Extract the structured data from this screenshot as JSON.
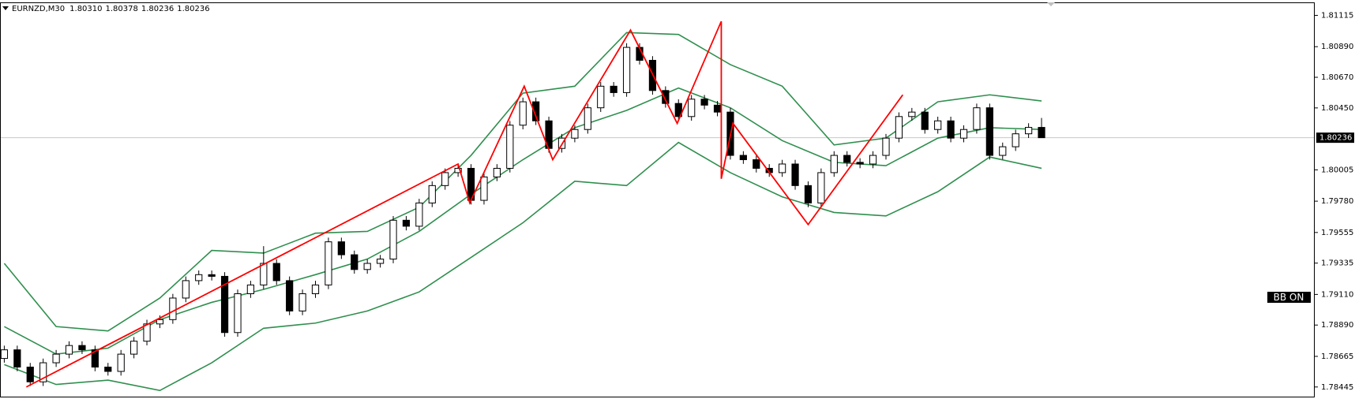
{
  "chart_data": {
    "type": "candlestick",
    "title": "EURNZD,M30",
    "quote_labels": [
      "1.80310",
      "1.80378",
      "1.80236",
      "1.80236"
    ],
    "indicator_label": "BB ON",
    "current_price": 1.80236,
    "xlim": [
      -0.33,
      101.07
    ],
    "ylim": [
      1.7837,
      1.81214
    ],
    "yticks": [
      1.81115,
      {
        "value": 1.8089,
        "label": "1.80890"
      },
      {
        "value": 1.8067,
        "label": "1.80670"
      },
      {
        "value": 1.8045,
        "label": "1.80450"
      },
      1.80005,
      {
        "value": 1.7978,
        "label": "1.79780"
      },
      1.79555,
      1.79335,
      {
        "value": 1.7911,
        "label": "1.79110"
      },
      {
        "value": 1.7889,
        "label": "1.78890"
      },
      1.78665,
      1.78445
    ],
    "up_color": "#ffffff",
    "down_color": "#000000",
    "x": [
      0,
      1,
      2,
      3,
      4,
      5,
      6,
      7,
      8,
      9,
      10,
      11,
      12,
      13,
      14,
      15,
      16,
      17,
      18,
      19,
      20,
      21,
      22,
      23,
      24,
      25,
      26,
      27,
      28,
      29,
      30,
      31,
      32,
      33,
      34,
      35,
      36,
      37,
      38,
      39,
      40,
      41,
      42,
      43,
      44,
      45,
      46,
      47,
      48,
      49,
      50,
      51,
      52,
      53,
      54,
      55,
      56,
      57,
      58,
      59,
      60,
      61,
      62,
      63,
      64,
      65,
      66,
      67,
      68,
      69,
      70,
      71,
      72,
      73,
      74,
      75,
      76,
      77,
      78,
      79,
      80
    ],
    "open": [
      1.7865,
      1.78712,
      1.78588,
      1.78482,
      1.78619,
      1.78681,
      1.78743,
      1.78712,
      1.78588,
      1.78557,
      1.78681,
      1.78774,
      1.78898,
      1.78929,
      1.79084,
      1.79209,
      1.79252,
      1.7924,
      1.78836,
      1.79115,
      1.79178,
      1.79333,
      1.79209,
      1.78991,
      1.79115,
      1.79178,
      1.79488,
      1.79395,
      1.79289,
      1.79333,
      1.79364,
      1.79643,
      1.796,
      1.79767,
      1.79892,
      1.79985,
      1.80016,
      1.79786,
      1.79954,
      1.80016,
      1.80326,
      1.80494,
      1.80357,
      1.80159,
      1.80233,
      1.80295,
      1.80451,
      1.80606,
      1.8056,
      1.80885,
      1.80792,
      1.80575,
      1.80482,
      1.80388,
      1.80513,
      1.8047,
      1.8042,
      1.80109,
      1.80078,
      1.80016,
      1.79985,
      1.80047,
      1.79892,
      1.79767,
      1.79985,
      1.80109,
      1.80059,
      1.80047,
      1.80109,
      1.80233,
      1.80388,
      1.8042,
      1.80295,
      1.80357,
      1.80233,
      1.80295,
      1.80451,
      1.80109,
      1.80171,
      1.80264,
      1.8031
    ],
    "high": [
      1.78742,
      1.78742,
      1.78618,
      1.78649,
      1.78711,
      1.78773,
      1.78773,
      1.78742,
      1.78618,
      1.78711,
      1.78804,
      1.78928,
      1.78959,
      1.79114,
      1.79239,
      1.79282,
      1.79282,
      1.7927,
      1.79145,
      1.79208,
      1.79457,
      1.79363,
      1.79239,
      1.79145,
      1.79208,
      1.79518,
      1.79518,
      1.79425,
      1.79363,
      1.79394,
      1.79673,
      1.79673,
      1.79797,
      1.79922,
      1.80015,
      1.80046,
      1.80046,
      1.79984,
      1.80046,
      1.80356,
      1.80524,
      1.80524,
      1.80387,
      1.80263,
      1.80325,
      1.80481,
      1.80636,
      1.80636,
      1.80915,
      1.80915,
      1.80822,
      1.80605,
      1.80512,
      1.80543,
      1.80543,
      1.805,
      1.8045,
      1.80139,
      1.80108,
      1.80046,
      1.80077,
      1.80077,
      1.79922,
      1.80015,
      1.80139,
      1.80139,
      1.80089,
      1.80139,
      1.80263,
      1.80418,
      1.8045,
      1.8045,
      1.80387,
      1.80387,
      1.80325,
      1.80481,
      1.80481,
      1.80201,
      1.80294,
      1.8034,
      1.80378
    ],
    "low": [
      1.7862,
      1.78558,
      1.78452,
      1.78452,
      1.78589,
      1.78651,
      1.78682,
      1.78558,
      1.78527,
      1.78527,
      1.78651,
      1.78744,
      1.78868,
      1.78899,
      1.79054,
      1.79179,
      1.7921,
      1.78806,
      1.78806,
      1.79085,
      1.79148,
      1.79179,
      1.78961,
      1.78961,
      1.79085,
      1.79148,
      1.79365,
      1.79259,
      1.79259,
      1.79303,
      1.79334,
      1.7957,
      1.7957,
      1.79737,
      1.79862,
      1.79955,
      1.79756,
      1.79756,
      1.79924,
      1.79986,
      1.80296,
      1.80327,
      1.80129,
      1.80129,
      1.80203,
      1.80265,
      1.80421,
      1.8053,
      1.8053,
      1.80762,
      1.80545,
      1.80452,
      1.80358,
      1.80358,
      1.8044,
      1.8039,
      1.80079,
      1.80048,
      1.79986,
      1.79955,
      1.79955,
      1.79862,
      1.79737,
      1.79737,
      1.79955,
      1.80029,
      1.80017,
      1.80017,
      1.80079,
      1.80203,
      1.80358,
      1.80265,
      1.80265,
      1.80203,
      1.80203,
      1.80265,
      1.80079,
      1.80079,
      1.80141,
      1.80234,
      1.80236
    ],
    "close": [
      1.78712,
      1.78588,
      1.78482,
      1.78619,
      1.78681,
      1.78743,
      1.78712,
      1.78588,
      1.78557,
      1.78681,
      1.78774,
      1.78898,
      1.78929,
      1.79084,
      1.79209,
      1.79252,
      1.7924,
      1.78836,
      1.79115,
      1.79178,
      1.79333,
      1.79209,
      1.78991,
      1.79115,
      1.79178,
      1.79488,
      1.79395,
      1.79289,
      1.79333,
      1.79364,
      1.79643,
      1.796,
      1.79767,
      1.79892,
      1.79985,
      1.80016,
      1.79786,
      1.79954,
      1.80016,
      1.80326,
      1.80494,
      1.80357,
      1.80159,
      1.80233,
      1.80295,
      1.80451,
      1.80606,
      1.8056,
      1.80885,
      1.80792,
      1.80575,
      1.80482,
      1.80388,
      1.80513,
      1.8047,
      1.8042,
      1.80109,
      1.80078,
      1.80016,
      1.79985,
      1.80047,
      1.79892,
      1.79767,
      1.79985,
      1.80109,
      1.80059,
      1.80047,
      1.80109,
      1.80233,
      1.80388,
      1.8042,
      1.80295,
      1.80357,
      1.80233,
      1.80295,
      1.80451,
      1.80109,
      1.80171,
      1.80264,
      1.8031,
      1.80236
    ],
    "bands": {
      "color": "#2f8f4e",
      "x": [
        0,
        4,
        8,
        12,
        16,
        20,
        24,
        28,
        32,
        36,
        40,
        44,
        48,
        52,
        56,
        60,
        64,
        68,
        72,
        76,
        80
      ],
      "upper": [
        1.79333,
        1.78879,
        1.78848,
        1.79084,
        1.79426,
        1.79407,
        1.7955,
        1.79563,
        1.79736,
        1.80109,
        1.80556,
        1.80606,
        1.80991,
        1.80978,
        1.80761,
        1.80606,
        1.80184,
        1.80233,
        1.80494,
        1.80544,
        1.805
      ],
      "middle": [
        1.78879,
        1.78681,
        1.78724,
        1.78929,
        1.79053,
        1.79146,
        1.79252,
        1.79364,
        1.79563,
        1.7983,
        1.80078,
        1.80308,
        1.80432,
        1.80593,
        1.80451,
        1.80215,
        1.80059,
        1.80035,
        1.80233,
        1.80308,
        1.80295
      ],
      "lower": [
        1.78606,
        1.78463,
        1.78494,
        1.7842,
        1.78619,
        1.78867,
        1.78904,
        1.78991,
        1.79128,
        1.79376,
        1.79625,
        1.79923,
        1.79892,
        1.80202,
        1.79985,
        1.79811,
        1.79699,
        1.79674,
        1.79848,
        1.80097,
        1.80016
      ]
    },
    "zigzag": {
      "color": "#ff0000",
      "x": [
        1.7,
        35,
        35.9,
        40.1,
        42.3,
        48.3,
        51.9,
        55.3,
        55.3,
        56.2,
        62,
        69.3
      ],
      "values": [
        1.78445,
        1.80047,
        1.79767,
        1.80606,
        1.80078,
        1.81009,
        1.80339,
        1.81072,
        1.79941,
        1.80339,
        1.79612,
        1.80544
      ]
    }
  }
}
